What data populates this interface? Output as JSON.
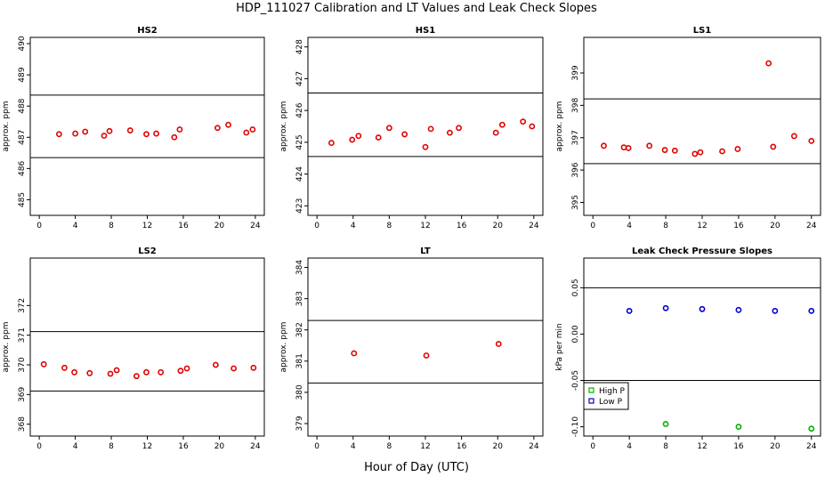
{
  "figure": {
    "title": "HDP_111027  Calibration and LT Values and Leak Check Slopes",
    "xlabel": "Hour of Day (UTC)"
  },
  "colors": {
    "red": "#e00000",
    "blue": "#0000d0",
    "green": "#00b000",
    "line": "#000000"
  },
  "chart_data": [
    {
      "type": "scatter",
      "title": "HS2",
      "ylabel": "approx. ppm",
      "xlim": [
        -1,
        25
      ],
      "ylim": [
        484.5,
        490.2
      ],
      "xticks": [
        0,
        4,
        8,
        12,
        16,
        20,
        24
      ],
      "yticks": [
        485,
        486,
        487,
        488,
        489,
        490
      ],
      "hlines": [
        486.35,
        488.35
      ],
      "series": [
        {
          "color": "red",
          "x": [
            2.2,
            4.0,
            5.1,
            7.2,
            7.8,
            10.1,
            11.9,
            13.0,
            15.0,
            15.6,
            19.8,
            21.0,
            23.0,
            23.7
          ],
          "y": [
            487.1,
            487.12,
            487.18,
            487.05,
            487.2,
            487.22,
            487.1,
            487.12,
            487.0,
            487.25,
            487.3,
            487.4,
            487.15,
            487.25
          ]
        }
      ]
    },
    {
      "type": "scatter",
      "title": "HS1",
      "ylabel": "approx. ppm",
      "xlim": [
        -1,
        25
      ],
      "ylim": [
        422.7,
        428.3
      ],
      "xticks": [
        0,
        4,
        8,
        12,
        16,
        20,
        24
      ],
      "yticks": [
        423,
        424,
        425,
        426,
        427,
        428
      ],
      "hlines": [
        424.55,
        426.55
      ],
      "series": [
        {
          "color": "red",
          "x": [
            1.6,
            3.9,
            4.6,
            6.8,
            8.0,
            9.7,
            12.0,
            12.6,
            14.7,
            15.7,
            19.8,
            20.5,
            22.8,
            23.8
          ],
          "y": [
            424.98,
            425.08,
            425.2,
            425.15,
            425.45,
            425.25,
            424.85,
            425.42,
            425.3,
            425.45,
            425.3,
            425.55,
            425.65,
            425.5
          ]
        }
      ]
    },
    {
      "type": "scatter",
      "title": "LS1",
      "ylabel": "approx. ppm",
      "xlim": [
        -1,
        25
      ],
      "ylim": [
        394.6,
        400.1
      ],
      "xticks": [
        0,
        4,
        8,
        12,
        16,
        20,
        24
      ],
      "yticks": [
        395,
        396,
        397,
        398,
        399
      ],
      "hlines": [
        396.2,
        398.2
      ],
      "series": [
        {
          "color": "red",
          "x": [
            1.2,
            3.4,
            3.9,
            6.2,
            7.9,
            9.0,
            11.2,
            11.8,
            14.2,
            15.9,
            19.3,
            19.8,
            22.1,
            24.0
          ],
          "y": [
            396.75,
            396.7,
            396.68,
            396.75,
            396.62,
            396.6,
            396.5,
            396.55,
            396.58,
            396.65,
            399.3,
            396.72,
            397.05,
            396.9
          ]
        }
      ]
    },
    {
      "type": "scatter",
      "title": "LS2",
      "ylabel": "approx. ppm",
      "xlim": [
        -1,
        25
      ],
      "ylim": [
        367.6,
        373.6
      ],
      "xticks": [
        0,
        4,
        8,
        12,
        16,
        20,
        24
      ],
      "yticks": [
        368,
        369,
        370,
        371,
        372
      ],
      "hlines": [
        369.12,
        371.12
      ],
      "series": [
        {
          "color": "red",
          "x": [
            0.5,
            2.8,
            3.9,
            5.6,
            7.9,
            8.6,
            10.8,
            11.9,
            13.5,
            15.7,
            16.4,
            19.6,
            21.6,
            23.8
          ],
          "y": [
            370.02,
            369.9,
            369.75,
            369.72,
            369.7,
            369.82,
            369.62,
            369.75,
            369.75,
            369.8,
            369.88,
            370.0,
            369.88,
            369.9
          ]
        }
      ]
    },
    {
      "type": "scatter",
      "title": "LT",
      "ylabel": "approx. ppm",
      "xlim": [
        -1,
        25
      ],
      "ylim": [
        378.6,
        384.3
      ],
      "xticks": [
        0,
        4,
        8,
        12,
        16,
        20,
        24
      ],
      "yticks": [
        379,
        380,
        381,
        382,
        383,
        384
      ],
      "hlines": [
        380.3,
        382.3
      ],
      "series": [
        {
          "color": "red",
          "x": [
            4.1,
            12.1,
            20.1
          ],
          "y": [
            381.25,
            381.18,
            381.55
          ]
        }
      ]
    },
    {
      "type": "scatter",
      "title": "Leak Check Pressure Slopes",
      "ylabel": "kPa per min",
      "xlim": [
        -1,
        25
      ],
      "ylim": [
        -0.11,
        0.082
      ],
      "xticks": [
        0,
        4,
        8,
        12,
        16,
        20,
        24
      ],
      "yticks": [
        -0.1,
        -0.05,
        0.0,
        0.05
      ],
      "ytick_labels": [
        "-0.10",
        "-0.05",
        "0.00",
        "0.05"
      ],
      "hlines": [
        0.05,
        -0.05
      ],
      "legend": {
        "placement": "left-middle",
        "entries": [
          "High P",
          "Low P"
        ]
      },
      "series": [
        {
          "name": "High P",
          "color": "green",
          "x": [
            8.0,
            16.0,
            24.0
          ],
          "y": [
            -0.097,
            -0.1,
            -0.102
          ]
        },
        {
          "name": "Low P",
          "color": "blue",
          "x": [
            4.0,
            8.0,
            12.0,
            16.0,
            20.0,
            24.0
          ],
          "y": [
            0.025,
            0.028,
            0.027,
            0.026,
            0.025,
            0.025
          ]
        }
      ]
    }
  ]
}
